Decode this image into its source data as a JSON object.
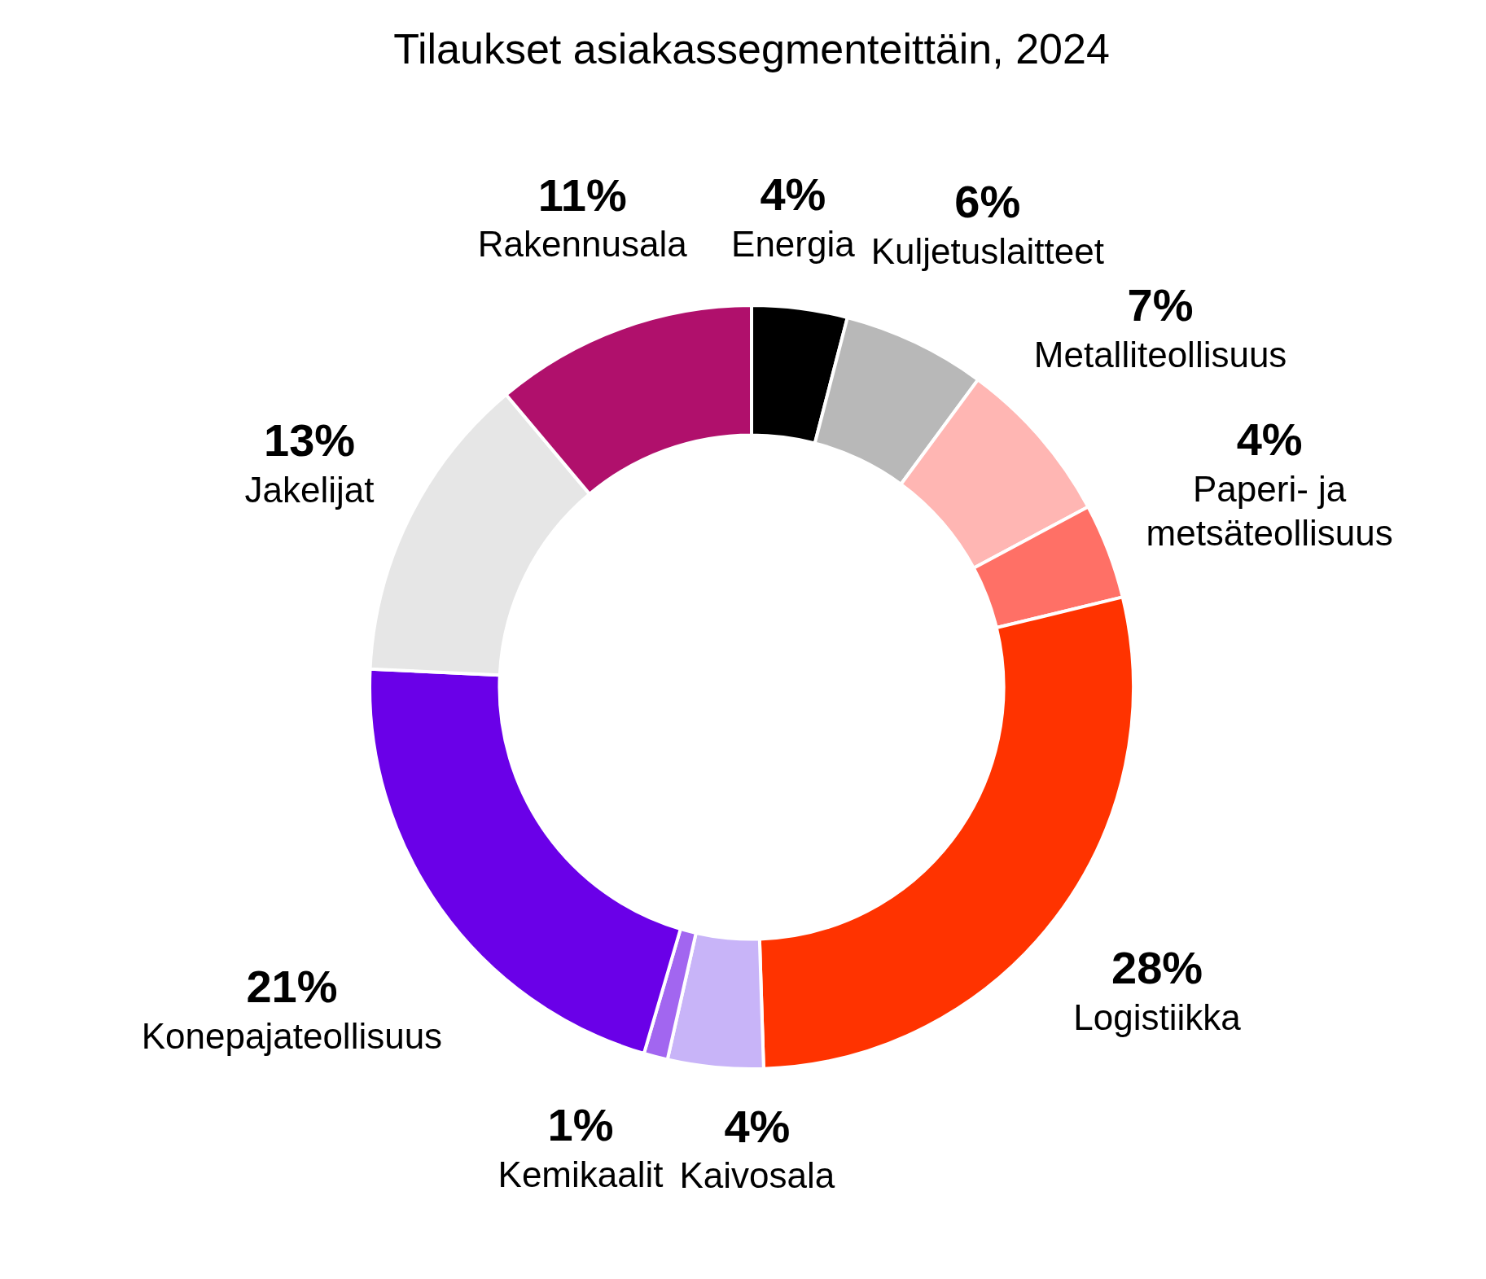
{
  "chart_data": {
    "type": "donut",
    "title": "Tilaukset asiakassegmenteittäin, 2024",
    "categories": [
      "Energia",
      "Kuljetuslaitteet",
      "Metalliteollisuus",
      "Paperi- ja metsäteollisuus",
      "Logistiikka",
      "Kaivosala",
      "Kemikaalit",
      "Konepajateollisuus",
      "Jakelijat",
      "Rakennusala"
    ],
    "values": [
      4,
      6,
      7,
      4,
      28,
      4,
      1,
      21,
      13,
      11
    ],
    "value_labels": [
      "4%",
      "6%",
      "7%",
      "4%",
      "28%",
      "4%",
      "1%",
      "21%",
      "13%",
      "11%"
    ],
    "colors": [
      "#000000",
      "#b8b8b8",
      "#ffb6b3",
      "#ff7066",
      "#ff3300",
      "#c8b4f8",
      "#a266f0",
      "#6a00e8",
      "#e6e6e6",
      "#b0106c"
    ],
    "legend": false
  }
}
